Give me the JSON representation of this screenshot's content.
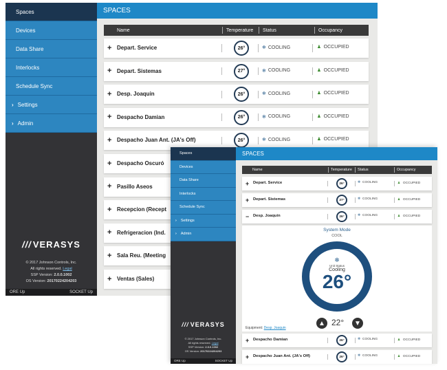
{
  "window1": {
    "sidebar": {
      "items": [
        {
          "label": "Spaces",
          "prefix": ""
        },
        {
          "label": "Devices",
          "prefix": ""
        },
        {
          "label": "Data Share",
          "prefix": ""
        },
        {
          "label": "Interlocks",
          "prefix": ""
        },
        {
          "label": "Schedule Sync",
          "prefix": ""
        },
        {
          "label": "Settings",
          "prefix": "›"
        },
        {
          "label": "Admin",
          "prefix": "›"
        }
      ],
      "brand": "VERASYS",
      "copyright": "© 2017 Johnson Controls, Inc.",
      "rights": "All rights reserved.",
      "legal_link": "Legal",
      "ssp_label": "SSP Version:",
      "ssp_value": "2.0.0.1002",
      "os_label": "OS Version:",
      "os_value": "20170224204203",
      "status_left": "ORE Up",
      "status_right": "SOCKET Up"
    },
    "header": {
      "title": "SPACES"
    },
    "table": {
      "columns": [
        "Name",
        "Temperature",
        "Status",
        "Occupancy"
      ],
      "rows": [
        {
          "name": "Depart. Service",
          "temp": "26°",
          "status": "COOLING",
          "occupancy": "OCCUPIED"
        },
        {
          "name": "Depart. Sistemas",
          "temp": "27°",
          "status": "COOLING",
          "occupancy": "OCCUPIED"
        },
        {
          "name": "Desp. Joaquin",
          "temp": "26°",
          "status": "COOLING",
          "occupancy": "OCCUPIED"
        },
        {
          "name": "Despacho Damian",
          "temp": "26°",
          "status": "COOLING",
          "occupancy": "OCCUPIED"
        },
        {
          "name": "Despacho Juan Ant. (JA's Off)",
          "temp": "26°",
          "status": "COOLING",
          "occupancy": "OCCUPIED"
        },
        {
          "name": "Despacho Oscuró",
          "temp": "",
          "status": "",
          "occupancy": ""
        },
        {
          "name": "Pasillo Aseos",
          "temp": "",
          "status": "",
          "occupancy": ""
        },
        {
          "name": "Recepcion (Recept",
          "temp": "",
          "status": "",
          "occupancy": ""
        },
        {
          "name": "Refrigeracion (Ind.",
          "temp": "",
          "status": "",
          "occupancy": ""
        },
        {
          "name": "Sala Reu. (Meeting",
          "temp": "",
          "status": "",
          "occupancy": ""
        },
        {
          "name": "Ventas (Sales)",
          "temp": "",
          "status": "",
          "occupancy": ""
        }
      ]
    }
  },
  "window2": {
    "sidebar": {
      "items": [
        {
          "label": "Spaces",
          "prefix": ""
        },
        {
          "label": "Devices",
          "prefix": ""
        },
        {
          "label": "Data Share",
          "prefix": ""
        },
        {
          "label": "Interlocks",
          "prefix": ""
        },
        {
          "label": "Schedule Sync",
          "prefix": ""
        },
        {
          "label": "Settings",
          "prefix": "›"
        },
        {
          "label": "Admin",
          "prefix": "›"
        }
      ],
      "brand": "VERASYS",
      "copyright": "© 2017 Johnson Controls, Inc.",
      "rights": "All rights reserved.",
      "legal_link": "Legal",
      "ssp_label": "SSP Version:",
      "ssp_value": "2.0.0.1002",
      "os_label": "OS Version:",
      "os_value": "20170224204203",
      "status_left": "ORE Up",
      "status_right": "SOCKET Up"
    },
    "header": {
      "title": "SPACES"
    },
    "table": {
      "columns": [
        "Name",
        "Temperature",
        "Status",
        "Occupancy"
      ],
      "rows_top": [
        {
          "toggle": "+",
          "name": "Depart. Service",
          "temp": "26°",
          "status": "COOLING",
          "occupancy": "OCCUPIED"
        },
        {
          "toggle": "+",
          "name": "Depart. Sistemas",
          "temp": "27°",
          "status": "COOLING",
          "occupancy": "OCCUPIED"
        },
        {
          "toggle": "−",
          "name": "Desp. Joaquin",
          "temp": "26°",
          "status": "COOLING",
          "occupancy": "OCCUPIED"
        }
      ],
      "rows_bottom": [
        {
          "toggle": "+",
          "name": "Despacho Damian",
          "temp": "26°",
          "status": "COOLING",
          "occupancy": "OCCUPIED"
        },
        {
          "toggle": "+",
          "name": "Despacho Juan Ant. (JA's Off)",
          "temp": "26°",
          "status": "COOLING",
          "occupancy": "OCCUPIED"
        }
      ]
    },
    "detail": {
      "system_mode_label": "System Mode",
      "system_mode_value": "COOL",
      "unit_status_label": "Unit Status",
      "unit_status_value": "Cooling",
      "current_temp": "26°",
      "setpoint": "22°",
      "equipment_label": "Equipment:",
      "equipment_link": "Desp. Joaquin"
    }
  }
}
